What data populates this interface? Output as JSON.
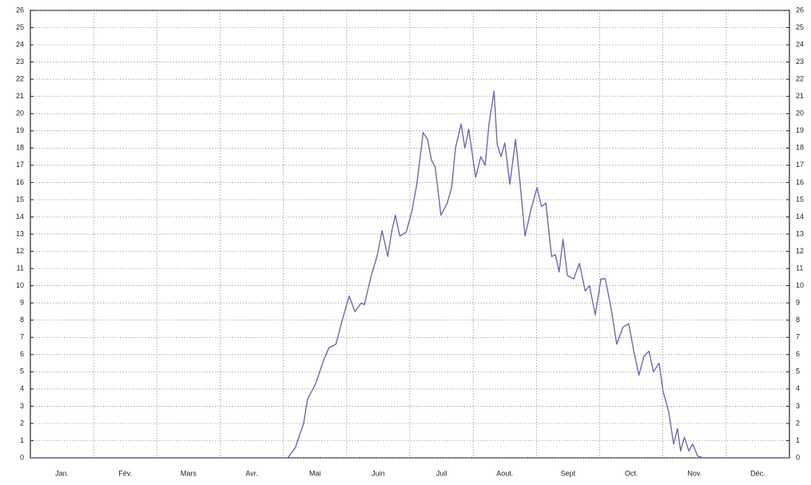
{
  "chart_data": {
    "type": "line",
    "categories": [
      "Jan.",
      "Fév.",
      "Mars",
      "Avr.",
      "Mai",
      "Juin",
      "Juil",
      "Aout.",
      "Sept",
      "Oct.",
      "Nov.",
      "Déc."
    ],
    "xlim": [
      0,
      12
    ],
    "x": [
      0,
      4.0,
      4.07,
      4.19,
      4.32,
      4.38,
      4.51,
      4.64,
      4.72,
      4.83,
      4.93,
      5.04,
      5.13,
      5.23,
      5.28,
      5.39,
      5.48,
      5.56,
      5.65,
      5.71,
      5.77,
      5.84,
      5.94,
      6.03,
      6.11,
      6.21,
      6.28,
      6.34,
      6.4,
      6.49,
      6.59,
      6.66,
      6.72,
      6.81,
      6.87,
      6.93,
      7.04,
      7.12,
      7.19,
      7.25,
      7.33,
      7.38,
      7.44,
      7.5,
      7.58,
      7.67,
      7.73,
      7.82,
      7.92,
      8.01,
      8.08,
      8.15,
      8.24,
      8.3,
      8.36,
      8.42,
      8.49,
      8.59,
      8.68,
      8.77,
      8.84,
      8.93,
      9.02,
      9.09,
      9.18,
      9.27,
      9.37,
      9.46,
      9.54,
      9.62,
      9.7,
      9.78,
      9.85,
      9.94,
      10.0,
      10.09,
      10.17,
      10.23,
      10.28,
      10.34,
      10.41,
      10.47,
      10.55,
      10.64,
      12
    ],
    "values": [
      0,
      0,
      0,
      0.6,
      2,
      3.4,
      4.3,
      5.7,
      6.4,
      6.6,
      8,
      9.4,
      8.5,
      9,
      8.9,
      10.6,
      11.7,
      13.2,
      11.7,
      13.1,
      14.1,
      12.9,
      13.1,
      14.3,
      15.9,
      18.9,
      18.5,
      17.3,
      16.9,
      14.1,
      14.8,
      15.7,
      18,
      19.4,
      18,
      19.1,
      16.3,
      17.5,
      17,
      19.4,
      21.3,
      18.2,
      17.5,
      18.3,
      15.9,
      18.5,
      16.4,
      12.9,
      14.5,
      15.7,
      14.6,
      14.8,
      11.7,
      11.8,
      10.8,
      12.7,
      10.6,
      10.4,
      11.3,
      9.7,
      10,
      8.3,
      10.4,
      10.4,
      8.7,
      6.6,
      7.6,
      7.8,
      6.2,
      4.8,
      5.9,
      6.2,
      5,
      5.5,
      3.9,
      2.7,
      0.8,
      1.7,
      0.4,
      1.2,
      0.4,
      0.8,
      0.1,
      0,
      0
    ],
    "color": "#6b6bab",
    "ylim": [
      0,
      26
    ],
    "yticks": [
      0,
      1,
      2,
      3,
      4,
      5,
      6,
      7,
      8,
      9,
      10,
      11,
      12,
      13,
      14,
      15,
      16,
      17,
      18,
      19,
      20,
      21,
      22,
      23,
      24,
      25,
      26
    ],
    "grid": true
  }
}
